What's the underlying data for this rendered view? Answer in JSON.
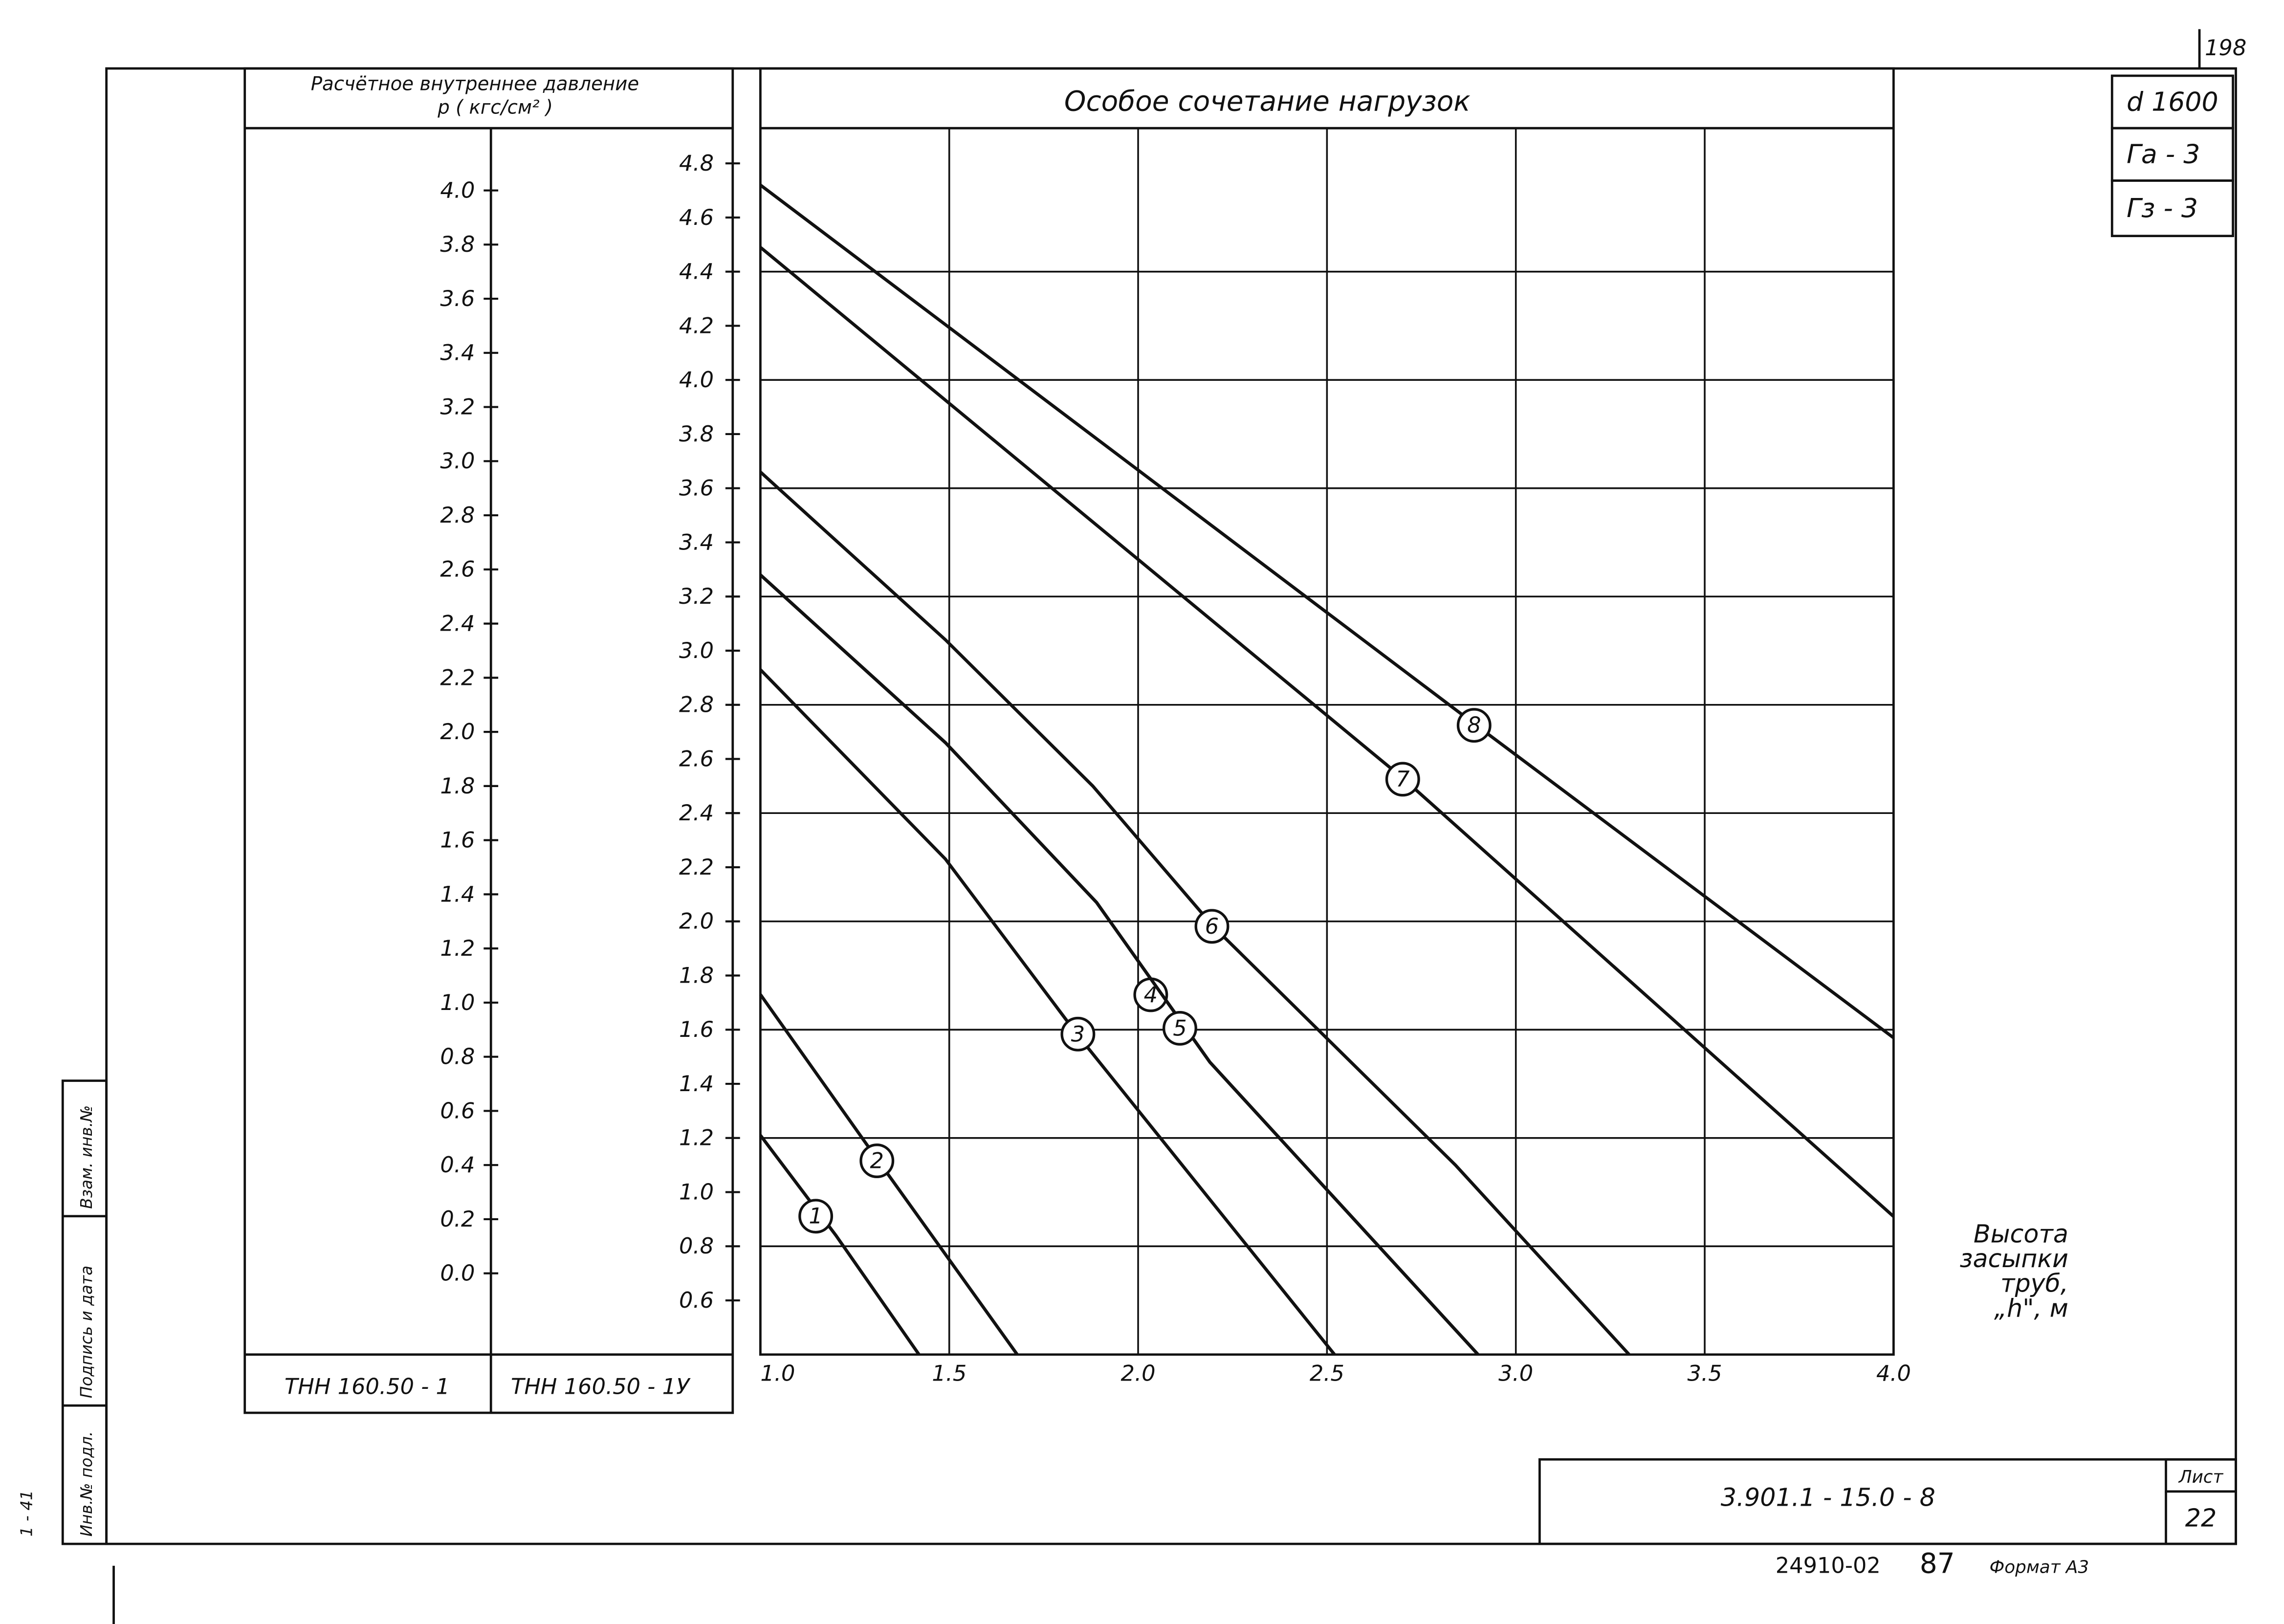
{
  "sheet": {
    "page_number": "198",
    "pipe": "d 1600",
    "ground_a": "Гa - 3",
    "ground_z": "Гз - 3",
    "sheet_label": "Лист",
    "sheet_number": "22",
    "doc_code": "3.901.1 - 15.0 - 8",
    "archive_code": "24910-02",
    "archive_number": "87",
    "format": "Формат А3",
    "stamp_inv": "Инв.№ подл.",
    "stamp_sign": "Подпись и дата",
    "stamp_replace": "Взам. инв.№",
    "side_code": "1 - 41",
    "pressure_header": "Расчётное внутреннее давление",
    "pressure_unit": "p ( кгс/см² )",
    "column_left": "ТНН 160.50 - 1",
    "column_right": "ТНН 160.50 - 1У"
  },
  "chart_data": {
    "type": "line",
    "title": "Особое сочетание нагрузок",
    "x_label": [
      "Высота",
      "засыпки",
      "труб,",
      "„h\", м"
    ],
    "xlim": [
      1,
      4
    ],
    "xticks": [
      {
        "value": 1,
        "label": "1.0"
      },
      1.5,
      {
        "value": 2,
        "label": "2.0"
      },
      2.5,
      {
        "value": 3,
        "label": "3.0"
      },
      3.5,
      {
        "value": 4,
        "label": "4.0"
      }
    ],
    "ylim": [
      0.4,
      4.93
    ],
    "yticks": [
      0.6,
      0.8,
      {
        "value": 1,
        "label": "1.0"
      },
      1.2,
      1.4,
      1.6,
      1.8,
      {
        "value": 2,
        "label": "2.0"
      },
      2.2,
      2.4,
      2.6,
      2.8,
      {
        "value": 3,
        "label": "3.0"
      },
      3.2,
      3.4,
      3.6,
      3.8,
      {
        "value": 4,
        "label": "4.0"
      },
      4.2,
      4.4,
      4.6,
      4.8
    ],
    "ygrid": [
      0.8,
      1.2,
      1.6,
      2.0,
      2.4,
      2.8,
      3.2,
      3.6,
      4.0,
      4.4
    ],
    "y2lim": [
      -0.3,
      4.23
    ],
    "y2ticks": [
      {
        "value": 0,
        "label": "0.0"
      },
      0.2,
      0.4,
      0.6,
      0.8,
      {
        "value": 1,
        "label": "1.0"
      },
      1.2,
      1.4,
      1.6,
      1.8,
      {
        "value": 2,
        "label": "2.0"
      },
      2.2,
      2.4,
      2.6,
      2.8,
      {
        "value": 3,
        "label": "3.0"
      },
      3.2,
      3.4,
      3.6,
      3.8,
      {
        "value": 4,
        "label": "4.0"
      }
    ],
    "grid": true,
    "series": [
      {
        "name": "1",
        "color": "#111111",
        "x": [
          1.0,
          1.2,
          1.42
        ],
        "values": [
          1.21,
          0.84,
          0.4
        ]
      },
      {
        "name": "2",
        "color": "#111111",
        "x": [
          1.0,
          1.31,
          1.68
        ],
        "values": [
          1.73,
          1.12,
          0.4
        ]
      },
      {
        "name": "3",
        "color": "#111111",
        "x": [
          1.0,
          1.49,
          1.84,
          2.52
        ],
        "values": [
          2.93,
          2.23,
          1.58,
          0.4
        ]
      },
      {
        "name": "4",
        "color": "#111111",
        "x": [
          1.0,
          1.49,
          1.89,
          2.19,
          2.9
        ],
        "values": [
          3.28,
          2.66,
          2.07,
          1.48,
          0.4
        ]
      },
      {
        "name": "5",
        "color": "#111111",
        "x": [
          1.0,
          1.49,
          1.89,
          2.19,
          2.9
        ],
        "values": [
          3.28,
          2.66,
          2.07,
          1.48,
          0.4
        ]
      },
      {
        "name": "6",
        "color": "#111111",
        "x": [
          1.0,
          1.49,
          1.88,
          2.2,
          2.84,
          3.3
        ],
        "values": [
          3.66,
          3.04,
          2.5,
          1.98,
          1.1,
          0.4
        ]
      },
      {
        "name": "7",
        "color": "#111111",
        "x": [
          1.0,
          2.7,
          4.0
        ],
        "values": [
          4.49,
          2.53,
          0.91
        ]
      },
      {
        "name": "8",
        "color": "#111111",
        "x": [
          1.0,
          2.89,
          4.0
        ],
        "values": [
          4.72,
          2.73,
          1.57
        ]
      }
    ]
  }
}
